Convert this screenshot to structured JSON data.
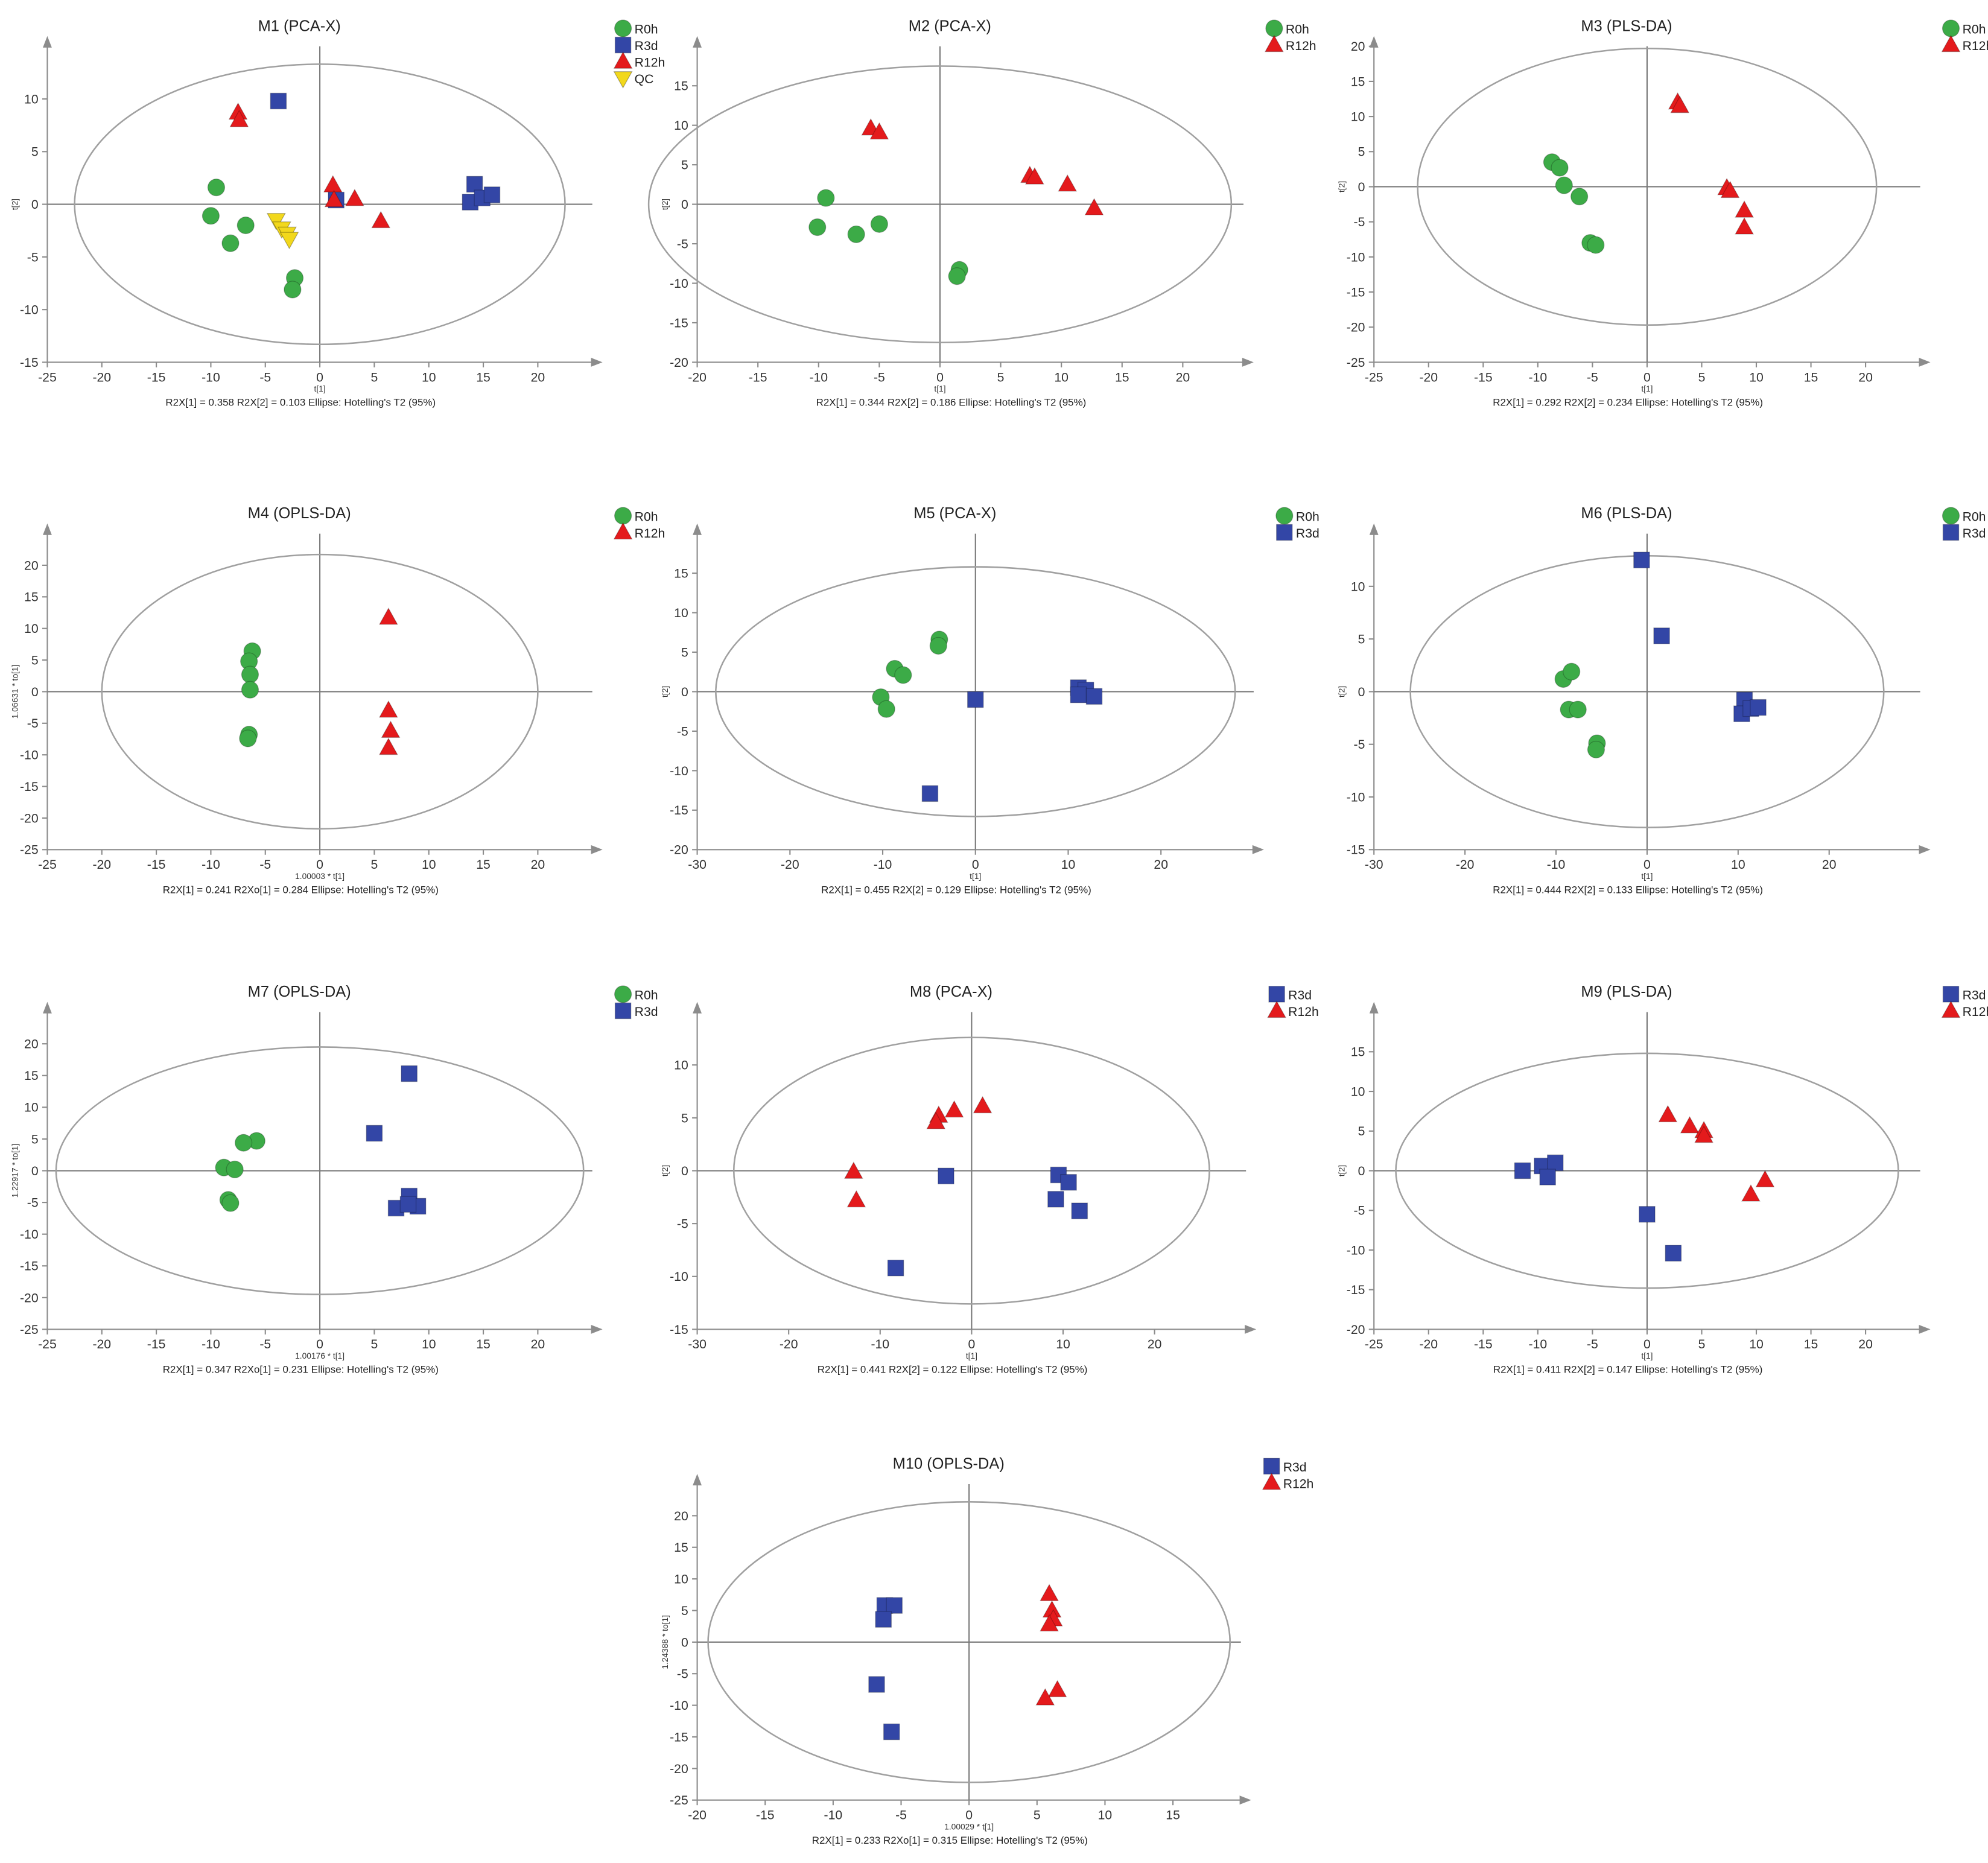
{
  "colors": {
    "R0h": "#3cab47",
    "R3d": "#3346a6",
    "R12h": "#e41a1c",
    "QC": "#f2d81c",
    "axis": "#8c8c8c",
    "ellipse": "#a0a0a0",
    "text": "#333333"
  },
  "chart_data": [
    {
      "id": "M1",
      "type": "scatter",
      "title": "M1 (PCA-X)",
      "xlabel": "t[1]",
      "ylabel": "t[2]",
      "xlim": [
        -25,
        25
      ],
      "ylim": [
        -15,
        15
      ],
      "xticks": [
        -25,
        -20,
        -15,
        -10,
        -5,
        0,
        5,
        10,
        15,
        20
      ],
      "yticks": [
        -15,
        -10,
        -5,
        0,
        5,
        10
      ],
      "ellipse": {
        "rx": 22.5,
        "ry": 13.3
      },
      "footer": "R2X[1] = 0.358  R2X[2] = 0.103  Ellipse: Hotelling's T2 (95%)",
      "legend": [
        "R0h",
        "R3d",
        "R12h",
        "QC"
      ],
      "series": [
        {
          "name": "R0h",
          "marker": "circle",
          "points": [
            [
              -9.5,
              1.6
            ],
            [
              -10,
              -1.1
            ],
            [
              -8.2,
              -3.7
            ],
            [
              -6.8,
              -2
            ],
            [
              -2.3,
              -7
            ],
            [
              -2.5,
              -8.1
            ]
          ]
        },
        {
          "name": "R3d",
          "marker": "square",
          "points": [
            [
              -3.8,
              9.8
            ],
            [
              1.5,
              0.4
            ],
            [
              14.2,
              1.9
            ],
            [
              13.8,
              0.2
            ],
            [
              14.9,
              0.6
            ],
            [
              15.8,
              0.9
            ]
          ]
        },
        {
          "name": "R12h",
          "marker": "triangle",
          "points": [
            [
              -7.5,
              8.7
            ],
            [
              -7.4,
              8
            ],
            [
              1.2,
              1.8
            ],
            [
              1.3,
              0.4
            ],
            [
              3.2,
              0.5
            ],
            [
              5.6,
              -1.6
            ]
          ]
        },
        {
          "name": "QC",
          "marker": "triangle-down",
          "points": [
            [
              -4,
              -1.5
            ],
            [
              -3.5,
              -2.3
            ],
            [
              -3,
              -2.8
            ],
            [
              -2.8,
              -3.3
            ]
          ]
        }
      ]
    },
    {
      "id": "M2",
      "type": "scatter",
      "title": "M2 (PCA-X)",
      "xlabel": "t[1]",
      "ylabel": "t[2]",
      "xlim": [
        -20,
        25
      ],
      "ylim": [
        -20,
        20
      ],
      "xticks": [
        -20,
        -15,
        -10,
        -5,
        0,
        5,
        10,
        15,
        20
      ],
      "yticks": [
        -20,
        -15,
        -10,
        -5,
        0,
        5,
        10,
        15
      ],
      "ellipse": {
        "rx": 24,
        "ry": 17.5
      },
      "footer": "R2X[1] = 0.344  R2X[2] = 0.186  Ellipse: Hotelling's T2 (95%)",
      "legend": [
        "R0h",
        "R12h"
      ],
      "series": [
        {
          "name": "R0h",
          "marker": "circle",
          "points": [
            [
              -9.4,
              0.8
            ],
            [
              -10.1,
              -2.9
            ],
            [
              -6.9,
              -3.8
            ],
            [
              -5,
              -2.5
            ],
            [
              1.6,
              -8.3
            ],
            [
              1.4,
              -9.1
            ]
          ]
        },
        {
          "name": "R12h",
          "marker": "triangle",
          "points": [
            [
              -5.7,
              9.6
            ],
            [
              -5,
              9.1
            ],
            [
              7.4,
              3.6
            ],
            [
              10.5,
              2.5
            ],
            [
              12.7,
              -0.5
            ],
            [
              7.8,
              3.4
            ]
          ]
        }
      ]
    },
    {
      "id": "M3",
      "type": "scatter",
      "title": "M3 (PLS-DA)",
      "xlabel": "t[1]",
      "ylabel": "t[2]",
      "xlim": [
        -25,
        25
      ],
      "ylim": [
        -25,
        20
      ],
      "xticks": [
        -25,
        -20,
        -15,
        -10,
        -5,
        0,
        5,
        10,
        15,
        20
      ],
      "yticks": [
        -25,
        -20,
        -15,
        -10,
        -5,
        0,
        5,
        10,
        15,
        20
      ],
      "ellipse": {
        "rx": 21,
        "ry": 19.7
      },
      "footer": "R2X[1] = 0.292  R2X[2] = 0.234  Ellipse: Hotelling's T2 (95%)",
      "legend": [
        "R0h",
        "R12h"
      ],
      "series": [
        {
          "name": "R0h",
          "marker": "circle",
          "points": [
            [
              -8.7,
              3.5
            ],
            [
              -8,
              2.7
            ],
            [
              -7.6,
              0.2
            ],
            [
              -6.2,
              -1.4
            ],
            [
              -5.2,
              -8
            ],
            [
              -4.7,
              -8.3
            ]
          ]
        },
        {
          "name": "R12h",
          "marker": "triangle",
          "points": [
            [
              2.8,
              12
            ],
            [
              3,
              11.5
            ],
            [
              7.3,
              -0.2
            ],
            [
              7.6,
              -0.6
            ],
            [
              8.9,
              -3.4
            ],
            [
              8.9,
              -5.8
            ]
          ]
        }
      ]
    },
    {
      "id": "M4",
      "type": "scatter",
      "title": "M4 (OPLS-DA)",
      "xlabel": "1.00003 * t[1]",
      "ylabel": "1.06631 * to[1]",
      "xlim": [
        -25,
        25
      ],
      "ylim": [
        -25,
        25
      ],
      "xticks": [
        -25,
        -20,
        -15,
        -10,
        -5,
        0,
        5,
        10,
        15,
        20
      ],
      "yticks": [
        -25,
        -20,
        -15,
        -10,
        -5,
        0,
        5,
        10,
        15,
        20
      ],
      "ellipse": {
        "rx": 20,
        "ry": 21.7
      },
      "footer": "R2X[1] = 0.241  R2Xo[1] = 0.284  Ellipse: Hotelling's T2 (95%)",
      "legend": [
        "R0h",
        "R12h"
      ],
      "series": [
        {
          "name": "R0h",
          "marker": "circle",
          "points": [
            [
              -6.2,
              6.4
            ],
            [
              -6.5,
              4.8
            ],
            [
              -6.4,
              2.7
            ],
            [
              -6.4,
              0.3
            ],
            [
              -6.5,
              -6.8
            ],
            [
              -6.6,
              -7.4
            ]
          ]
        },
        {
          "name": "R12h",
          "marker": "triangle",
          "points": [
            [
              6.3,
              11.7
            ],
            [
              6.3,
              -3
            ],
            [
              6.5,
              -6.2
            ],
            [
              6.3,
              -8.9
            ]
          ]
        }
      ]
    },
    {
      "id": "M5",
      "type": "scatter",
      "title": "M5 (PCA-X)",
      "xlabel": "t[1]",
      "ylabel": "t[2]",
      "xlim": [
        -30,
        30
      ],
      "ylim": [
        -20,
        20
      ],
      "xticks": [
        -30,
        -20,
        -10,
        0,
        10,
        20
      ],
      "yticks": [
        -20,
        -15,
        -10,
        -5,
        0,
        5,
        10,
        15
      ],
      "ellipse": {
        "rx": 28,
        "ry": 15.8
      },
      "footer": "R2X[1] = 0.455  R2X[2] = 0.129  Ellipse: Hotelling's T2 (95%)",
      "legend": [
        "R0h",
        "R3d"
      ],
      "series": [
        {
          "name": "R0h",
          "marker": "circle",
          "points": [
            [
              -3.9,
              6.6
            ],
            [
              -4,
              5.8
            ],
            [
              -8.7,
              2.9
            ],
            [
              -7.8,
              2.1
            ],
            [
              -10.2,
              -0.7
            ],
            [
              -9.6,
              -2.2
            ]
          ]
        },
        {
          "name": "R3d",
          "marker": "square",
          "points": [
            [
              0,
              -1
            ],
            [
              -4.9,
              -12.9
            ],
            [
              11.1,
              0.5
            ],
            [
              11.9,
              0.2
            ],
            [
              11.1,
              -0.4
            ],
            [
              12.8,
              -0.6
            ]
          ]
        }
      ]
    },
    {
      "id": "M6",
      "type": "scatter",
      "title": "M6 (PLS-DA)",
      "xlabel": "t[1]",
      "ylabel": "t[2]",
      "xlim": [
        -30,
        30
      ],
      "ylim": [
        -15,
        15
      ],
      "xticks": [
        -30,
        -20,
        -10,
        0,
        10,
        20
      ],
      "yticks": [
        -15,
        -10,
        -5,
        0,
        5,
        10
      ],
      "ellipse": {
        "rx": 26,
        "ry": 12.9
      },
      "footer": "R2X[1] = 0.444  R2X[2] = 0.133  Ellipse: Hotelling's T2 (95%)",
      "legend": [
        "R0h",
        "R3d"
      ],
      "series": [
        {
          "name": "R0h",
          "marker": "circle",
          "points": [
            [
              -9.2,
              1.2
            ],
            [
              -8.3,
              1.9
            ],
            [
              -8.6,
              -1.7
            ],
            [
              -7.6,
              -1.7
            ],
            [
              -5.5,
              -4.9
            ],
            [
              -5.6,
              -5.5
            ]
          ]
        },
        {
          "name": "R3d",
          "marker": "square",
          "points": [
            [
              -0.6,
              12.5
            ],
            [
              1.6,
              5.3
            ],
            [
              10.7,
              -0.8
            ],
            [
              10.4,
              -2.1
            ],
            [
              11.4,
              -1.6
            ],
            [
              12.2,
              -1.5
            ]
          ]
        }
      ]
    },
    {
      "id": "M7",
      "type": "scatter",
      "title": "M7 (OPLS-DA)",
      "xlabel": "1.00176 * t[1]",
      "ylabel": "1.22917 * to[1]",
      "xlim": [
        -25,
        25
      ],
      "ylim": [
        -25,
        25
      ],
      "xticks": [
        -25,
        -20,
        -15,
        -10,
        -5,
        0,
        5,
        10,
        15,
        20
      ],
      "yticks": [
        -25,
        -20,
        -15,
        -10,
        -5,
        0,
        5,
        10,
        15,
        20
      ],
      "ellipse": {
        "rx": 24.2,
        "ry": 19.5
      },
      "footer": "R2X[1] = 0.347  R2Xo[1] = 0.231  Ellipse: Hotelling's T2 (95%)",
      "legend": [
        "R0h",
        "R3d"
      ],
      "series": [
        {
          "name": "R0h",
          "marker": "circle",
          "points": [
            [
              -5.8,
              4.7
            ],
            [
              -7,
              4.4
            ],
            [
              -8.8,
              0.5
            ],
            [
              -7.8,
              0.2
            ],
            [
              -8.4,
              -4.6
            ],
            [
              -8.2,
              -5.1
            ]
          ]
        },
        {
          "name": "R3d",
          "marker": "square",
          "points": [
            [
              8.2,
              15.3
            ],
            [
              5,
              5.9
            ],
            [
              8.2,
              -4
            ],
            [
              9,
              -5.6
            ],
            [
              7,
              -5.9
            ],
            [
              8.1,
              -5.3
            ]
          ]
        }
      ]
    },
    {
      "id": "M8",
      "type": "scatter",
      "title": "M8 (PCA-X)",
      "xlabel": "t[1]",
      "ylabel": "t[2]",
      "xlim": [
        -30,
        30
      ],
      "ylim": [
        -15,
        15
      ],
      "xticks": [
        -30,
        -20,
        -10,
        0,
        10,
        20
      ],
      "yticks": [
        -15,
        -10,
        -5,
        0,
        5,
        10
      ],
      "ellipse": {
        "rx": 26,
        "ry": 12.6
      },
      "footer": "R2X[1] = 0.441  R2X[2] = 0.122  Ellipse: Hotelling's T2 (95%)",
      "legend": [
        "R3d",
        "R12h"
      ],
      "series": [
        {
          "name": "R3d",
          "marker": "square",
          "points": [
            [
              -2.8,
              -0.5
            ],
            [
              -8.3,
              -9.2
            ],
            [
              9.5,
              -0.4
            ],
            [
              10.6,
              -1.1
            ],
            [
              9.2,
              -2.7
            ],
            [
              11.8,
              -3.8
            ]
          ]
        },
        {
          "name": "R12h",
          "marker": "triangle",
          "points": [
            [
              1.2,
              6.1
            ],
            [
              -1.9,
              5.7
            ],
            [
              -3.6,
              5.2
            ],
            [
              -3.9,
              4.6
            ],
            [
              -12.9,
              -0.1
            ],
            [
              -12.6,
              -2.8
            ]
          ]
        }
      ]
    },
    {
      "id": "M9",
      "type": "scatter",
      "title": "M9 (PLS-DA)",
      "xlabel": "t[1]",
      "ylabel": "t[2]",
      "xlim": [
        -25,
        25
      ],
      "ylim": [
        -20,
        20
      ],
      "xticks": [
        -25,
        -20,
        -15,
        -10,
        -5,
        0,
        5,
        10,
        15,
        20
      ],
      "yticks": [
        -20,
        -15,
        -10,
        -5,
        0,
        5,
        10,
        15
      ],
      "ellipse": {
        "rx": 23,
        "ry": 14.8
      },
      "footer": "R2X[1] = 0.411  R2X[2] = 0.147  Ellipse: Hotelling's T2 (95%)",
      "legend": [
        "R3d",
        "R12h"
      ],
      "series": [
        {
          "name": "R3d",
          "marker": "square",
          "points": [
            [
              -11.4,
              0
            ],
            [
              -9.6,
              0.6
            ],
            [
              -8.4,
              1
            ],
            [
              -9.1,
              -0.8
            ],
            [
              0,
              -5.5
            ],
            [
              2.4,
              -10.4
            ]
          ]
        },
        {
          "name": "R12h",
          "marker": "triangle",
          "points": [
            [
              1.9,
              7
            ],
            [
              3.9,
              5.6
            ],
            [
              5.2,
              5
            ],
            [
              5.2,
              4.4
            ],
            [
              10.8,
              -1.2
            ],
            [
              9.5,
              -3
            ]
          ]
        }
      ]
    },
    {
      "id": "M10",
      "type": "scatter",
      "title": "M10 (OPLS-DA)",
      "xlabel": "1.00029 * t[1]",
      "ylabel": "1.24388 * to[1]",
      "xlim": [
        -20,
        20
      ],
      "ylim": [
        -25,
        25
      ],
      "xticks": [
        -20,
        -15,
        -10,
        -5,
        0,
        5,
        10,
        15
      ],
      "yticks": [
        -25,
        -20,
        -15,
        -10,
        -5,
        0,
        5,
        10,
        15,
        20
      ],
      "ellipse": {
        "rx": 19.2,
        "ry": 22.2
      },
      "footer": "R2X[1] = 0.233  R2Xo[1] = 0.315  Ellipse: Hotelling's T2 (95%)",
      "legend": [
        "R3d",
        "R12h"
      ],
      "series": [
        {
          "name": "R3d",
          "marker": "square",
          "points": [
            [
              -6.2,
              5.8
            ],
            [
              -5.5,
              5.8
            ],
            [
              -6.3,
              3.6
            ],
            [
              -6.8,
              -6.7
            ],
            [
              -5.7,
              -14.2
            ]
          ]
        },
        {
          "name": "R12h",
          "marker": "triangle",
          "points": [
            [
              5.9,
              7.6
            ],
            [
              6.1,
              5
            ],
            [
              6.2,
              3.6
            ],
            [
              5.9,
              2.8
            ],
            [
              6.5,
              -7.6
            ],
            [
              5.6,
              -8.9
            ]
          ]
        }
      ]
    }
  ]
}
